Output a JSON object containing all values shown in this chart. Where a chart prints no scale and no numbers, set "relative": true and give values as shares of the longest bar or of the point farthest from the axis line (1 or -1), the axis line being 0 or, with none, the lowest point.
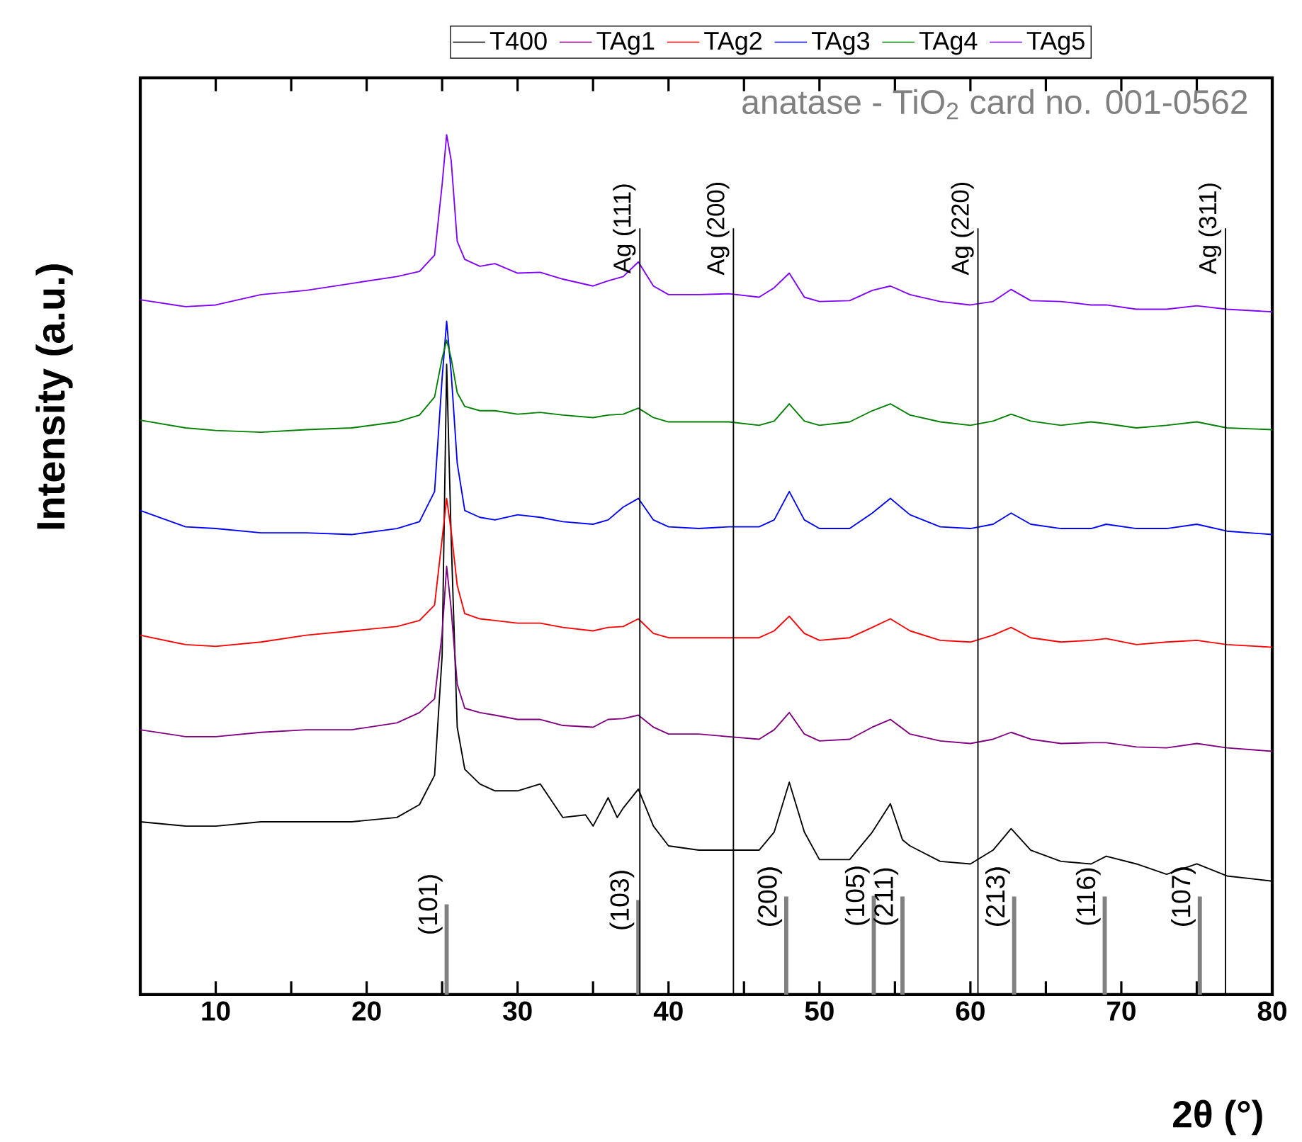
{
  "chart_data": {
    "type": "line",
    "relative": true,
    "xlabel": "2θ (°)",
    "ylabel": "Intensity (a.u.)",
    "xlim": [
      5,
      80
    ],
    "xticks": [
      10,
      {
        "value": 15,
        "label": null
      },
      20,
      {
        "value": 25,
        "label": null
      },
      30,
      {
        "value": 35,
        "label": null
      },
      40,
      {
        "value": 45,
        "label": null
      },
      50,
      {
        "value": 55,
        "label": null
      },
      60,
      {
        "value": 65,
        "label": null
      },
      70,
      {
        "value": 75,
        "label": null
      },
      80
    ],
    "legend": "top",
    "x": [
      5,
      8,
      10,
      13,
      16,
      19,
      22,
      23.5,
      24.5,
      25,
      25.3,
      25.6,
      26,
      26.5,
      27.5,
      28.5,
      30,
      31.5,
      33,
      35,
      36,
      37,
      38,
      39,
      40,
      42,
      44,
      46,
      47,
      48,
      49,
      50,
      52,
      53.5,
      54.7,
      56,
      58,
      60,
      61.5,
      62.7,
      64,
      66,
      68,
      69,
      71,
      73,
      75,
      77,
      80
    ],
    "series": [
      {
        "name": "T400",
        "color": "#000000",
        "x": [
          5,
          8,
          10,
          13,
          16,
          19,
          22,
          23.5,
          24.5,
          25,
          25.3,
          25.6,
          26,
          26.5,
          27.5,
          28.5,
          30,
          31.5,
          33,
          34.5,
          35,
          36,
          36.6,
          37,
          38,
          39,
          40,
          42,
          44,
          46,
          47,
          48,
          49,
          50,
          52,
          53.5,
          54.7,
          55.5,
          56,
          58,
          60,
          61.5,
          62.7,
          64,
          66,
          68,
          69,
          71,
          73,
          75,
          77,
          80
        ],
        "values": [
          0.201,
          0.196,
          0.196,
          0.201,
          0.201,
          0.201,
          0.206,
          0.221,
          0.255,
          0.394,
          0.733,
          0.53,
          0.311,
          0.262,
          0.245,
          0.237,
          0.237,
          0.245,
          0.206,
          0.209,
          0.196,
          0.229,
          0.206,
          0.217,
          0.239,
          0.196,
          0.173,
          0.168,
          0.168,
          0.168,
          0.189,
          0.247,
          0.189,
          0.157,
          0.157,
          0.189,
          0.222,
          0.18,
          0.173,
          0.155,
          0.152,
          0.168,
          0.193,
          0.168,
          0.155,
          0.152,
          0.161,
          0.152,
          0.14,
          0.152,
          0.138,
          0.132
        ]
      },
      {
        "name": "TAg1",
        "color": "#800080",
        "values": [
          0.308,
          0.3,
          0.3,
          0.305,
          0.308,
          0.308,
          0.316,
          0.328,
          0.344,
          0.42,
          0.498,
          0.448,
          0.361,
          0.333,
          0.328,
          0.325,
          0.32,
          0.32,
          0.313,
          0.311,
          0.32,
          0.321,
          0.325,
          0.311,
          0.303,
          0.303,
          0.3,
          0.297,
          0.308,
          0.328,
          0.303,
          0.295,
          0.297,
          0.311,
          0.32,
          0.303,
          0.295,
          0.292,
          0.297,
          0.305,
          0.297,
          0.292,
          0.293,
          0.293,
          0.288,
          0.287,
          0.292,
          0.287,
          0.283
        ]
      },
      {
        "name": "TAg2",
        "color": "#ff0000",
        "values": [
          0.418,
          0.407,
          0.405,
          0.41,
          0.418,
          0.423,
          0.428,
          0.435,
          0.453,
          0.53,
          0.577,
          0.539,
          0.476,
          0.443,
          0.437,
          0.435,
          0.432,
          0.432,
          0.427,
          0.423,
          0.427,
          0.428,
          0.437,
          0.42,
          0.415,
          0.415,
          0.415,
          0.415,
          0.423,
          0.44,
          0.42,
          0.412,
          0.415,
          0.427,
          0.437,
          0.423,
          0.412,
          0.41,
          0.418,
          0.427,
          0.415,
          0.41,
          0.412,
          0.414,
          0.407,
          0.41,
          0.412,
          0.407,
          0.404
        ]
      },
      {
        "name": "TAg3",
        "color": "#0000ff",
        "values": [
          0.563,
          0.544,
          0.542,
          0.537,
          0.537,
          0.535,
          0.542,
          0.55,
          0.585,
          0.717,
          0.783,
          0.723,
          0.618,
          0.563,
          0.555,
          0.552,
          0.558,
          0.555,
          0.55,
          0.547,
          0.552,
          0.567,
          0.577,
          0.552,
          0.544,
          0.542,
          0.544,
          0.544,
          0.552,
          0.585,
          0.552,
          0.542,
          0.542,
          0.56,
          0.577,
          0.558,
          0.544,
          0.542,
          0.547,
          0.56,
          0.547,
          0.542,
          0.542,
          0.547,
          0.542,
          0.542,
          0.547,
          0.539,
          0.535
        ]
      },
      {
        "name": "TAg4",
        "color": "#008000",
        "values": [
          0.668,
          0.659,
          0.656,
          0.654,
          0.657,
          0.659,
          0.666,
          0.674,
          0.695,
          0.74,
          0.761,
          0.74,
          0.7,
          0.684,
          0.679,
          0.679,
          0.675,
          0.677,
          0.674,
          0.671,
          0.674,
          0.675,
          0.682,
          0.671,
          0.666,
          0.666,
          0.666,
          0.662,
          0.667,
          0.687,
          0.667,
          0.662,
          0.666,
          0.679,
          0.687,
          0.674,
          0.666,
          0.662,
          0.667,
          0.675,
          0.667,
          0.662,
          0.666,
          0.664,
          0.659,
          0.662,
          0.666,
          0.659,
          0.657
        ]
      },
      {
        "name": "TAg5",
        "color": "#8000ff",
        "values": [
          0.808,
          0.8,
          0.802,
          0.814,
          0.819,
          0.827,
          0.835,
          0.841,
          0.86,
          0.942,
          1.0,
          0.97,
          0.876,
          0.855,
          0.847,
          0.85,
          0.839,
          0.84,
          0.832,
          0.824,
          0.83,
          0.835,
          0.852,
          0.824,
          0.814,
          0.814,
          0.815,
          0.811,
          0.822,
          0.839,
          0.811,
          0.806,
          0.807,
          0.819,
          0.824,
          0.814,
          0.806,
          0.802,
          0.806,
          0.82,
          0.807,
          0.806,
          0.802,
          0.802,
          0.797,
          0.797,
          0.801,
          0.797,
          0.794
        ]
      },
      {
        "type": "bar",
        "color": "#808080",
        "x": [
          25.3,
          38.0,
          47.8,
          53.6,
          55.5,
          62.9,
          68.9,
          75.2
        ],
        "values": [
          0.105,
          0.11,
          0.114,
          0.115,
          0.114,
          0.114,
          0.114,
          0.114
        ]
      }
    ],
    "ref_lines": [
      {
        "axis": "x",
        "value": 38.1,
        "label": "Ag (111)",
        "color": "#000000"
      },
      {
        "axis": "x",
        "value": 44.3,
        "label": "Ag (200)",
        "color": "#000000"
      },
      {
        "axis": "x",
        "value": 60.5,
        "label": "Ag (220)",
        "color": "#000000"
      },
      {
        "axis": "x",
        "value": 76.9,
        "label": "Ag (311)",
        "color": "#000000"
      }
    ],
    "annotations": [
      "anatase - TiO$_{2}$ card no. 001-0562",
      {
        "text": "(101)",
        "x": 25.3,
        "y": 0.105
      },
      {
        "text": "(103)",
        "x": 38.0,
        "y": 0.11
      },
      {
        "text": "(200)",
        "x": 47.8,
        "y": 0.114
      },
      {
        "text": "(105)",
        "x": 53.6,
        "y": 0.115
      },
      {
        "text": "(211)",
        "x": 55.5,
        "y": 0.114
      },
      {
        "text": "(213)",
        "x": 62.9,
        "y": 0.114
      },
      {
        "text": "(116)",
        "x": 68.9,
        "y": 0.114
      },
      {
        "text": "(107)",
        "x": 75.2,
        "y": 0.114
      }
    ]
  }
}
